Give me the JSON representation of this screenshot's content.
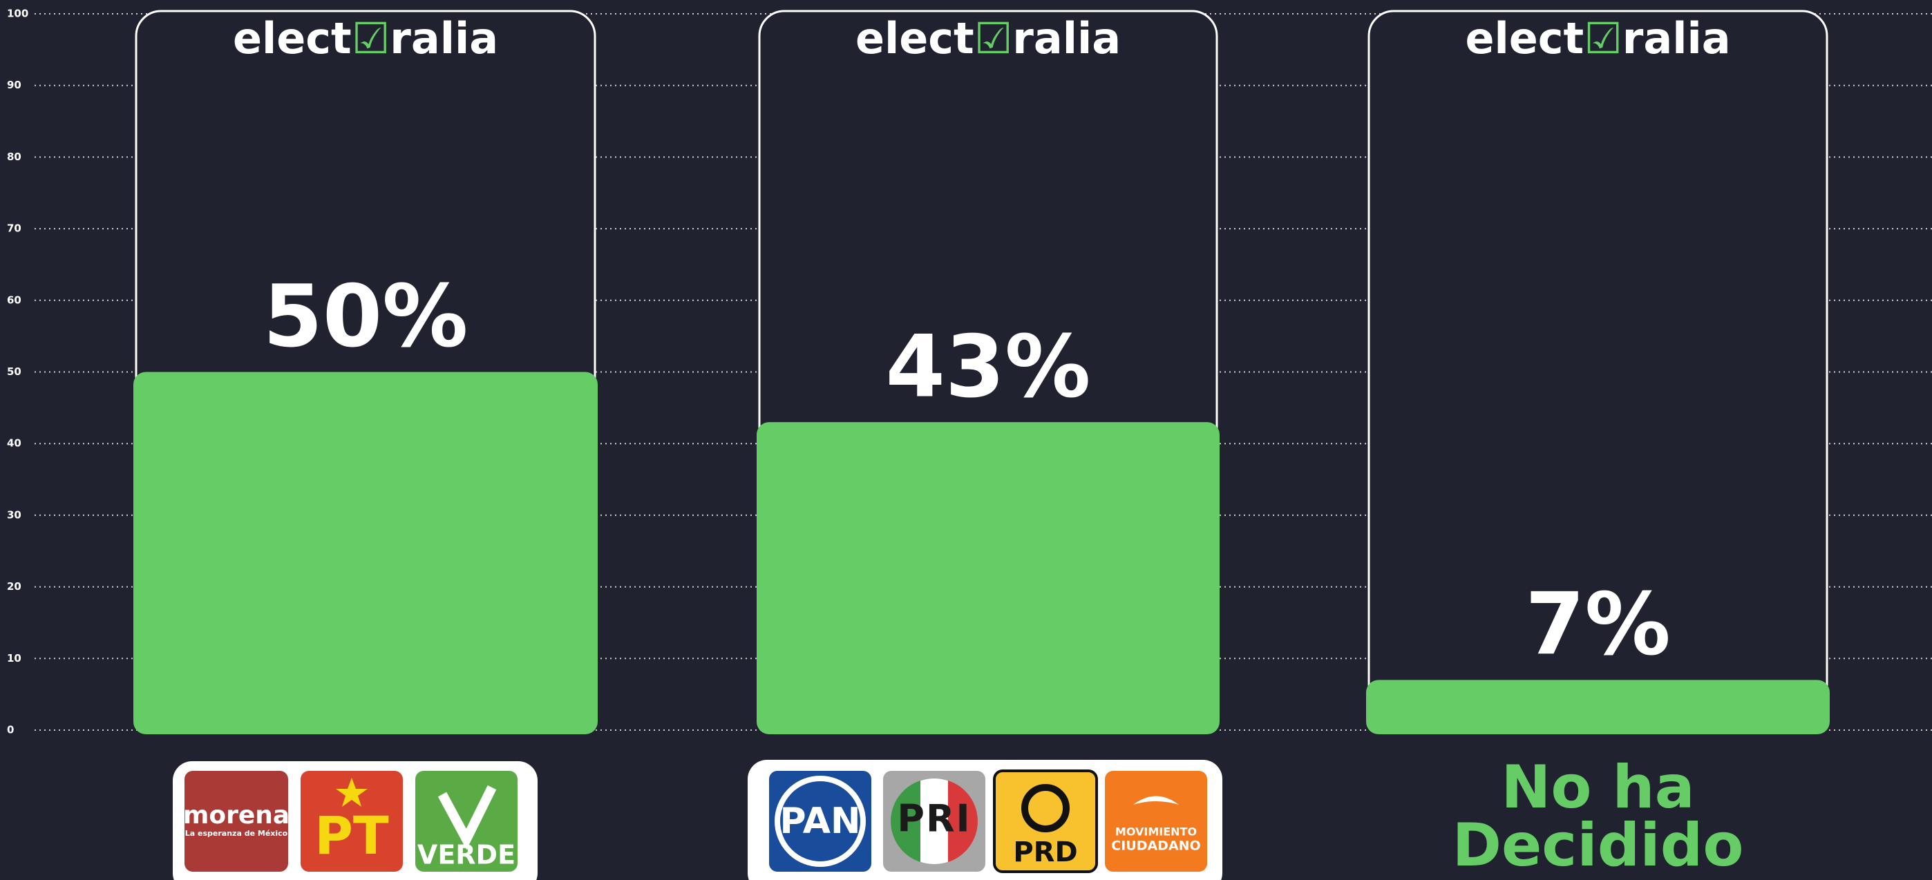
{
  "chart_data": {
    "type": "bar",
    "brand": [
      "elect",
      "ralia"
    ],
    "categories": [
      null,
      null,
      "No ha Decidido"
    ],
    "values": [
      50,
      43,
      7
    ],
    "value_labels": [
      "50%",
      "43%",
      "7%"
    ],
    "color": "#66cc66",
    "ylim": [
      0,
      100
    ],
    "yticks": [
      0,
      10,
      20,
      30,
      40,
      50,
      60,
      70,
      80,
      90,
      100
    ],
    "grid": true
  },
  "logos": [
    [
      "morena",
      "La esperanza de México",
      "PT",
      "VERDE"
    ],
    [
      "PAN",
      "PRI",
      "PRD",
      "MOVIMIENTO",
      "CIUDADANO"
    ]
  ]
}
